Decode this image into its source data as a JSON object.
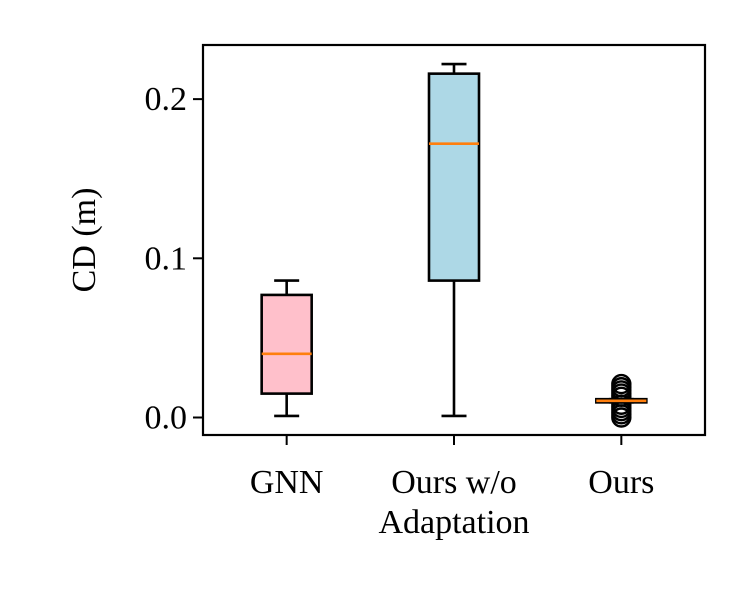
{
  "chart_data": {
    "type": "box",
    "title": "",
    "xlabel": "",
    "ylabel": "CD (m)",
    "ylim": [
      -0.011,
      0.234
    ],
    "yticks": [
      {
        "value": 0.0,
        "label": "0.0"
      },
      {
        "value": 0.1,
        "label": "0.1"
      },
      {
        "value": 0.2,
        "label": "0.2"
      }
    ],
    "categories": [
      {
        "label_lines": [
          "GNN"
        ],
        "label": "GNN"
      },
      {
        "label_lines": [
          "Ours w/o",
          "Adaptation"
        ],
        "label": "Ours w/o Adaptation"
      },
      {
        "label_lines": [
          "Ours"
        ],
        "label": "Ours"
      }
    ],
    "boxes": [
      {
        "category": "GNN",
        "whisker_low": 0.001,
        "q1": 0.015,
        "median": 0.04,
        "q3": 0.077,
        "whisker_high": 0.086,
        "fill": "#ffc0cb",
        "outliers": []
      },
      {
        "category": "Ours w/o Adaptation",
        "whisker_low": 0.001,
        "q1": 0.086,
        "median": 0.172,
        "q3": 0.216,
        "whisker_high": 0.222,
        "fill": "#add8e6",
        "outliers": []
      },
      {
        "category": "Ours",
        "whisker_low": 0.0095,
        "q1": 0.0095,
        "median": 0.0105,
        "q3": 0.0115,
        "whisker_high": 0.0115,
        "fill": "#ffffff",
        "outliers": [
          0.0,
          0.002,
          0.004,
          0.006,
          0.008,
          0.013,
          0.015,
          0.017,
          0.019,
          0.021
        ]
      }
    ],
    "colors": {
      "median": "#ff7f0e",
      "line": "#000000"
    },
    "grid": false,
    "legend": "none"
  }
}
